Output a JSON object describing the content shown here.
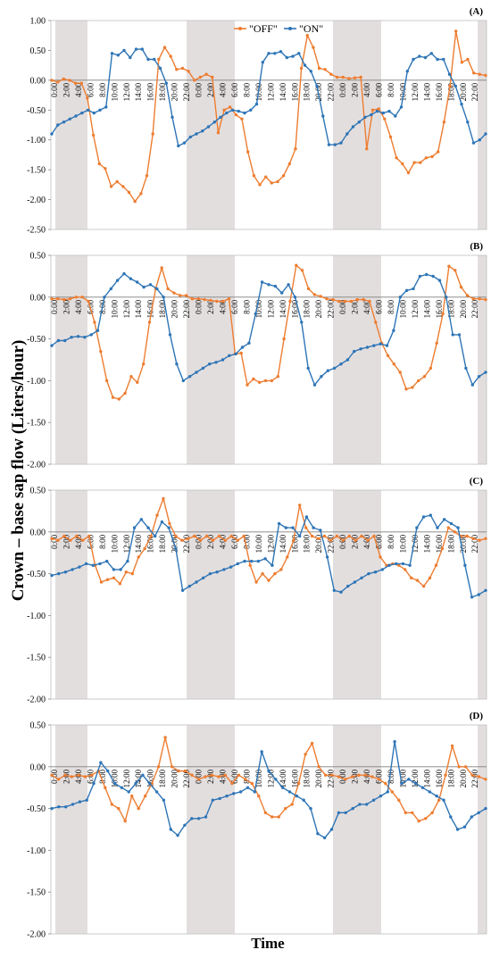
{
  "figure": {
    "ylabel": "Crown – base sap flow (Liters/hour)",
    "xlabel": "Time"
  },
  "legend": [
    {
      "name": "\"OFF\"",
      "color": "#ED7D31"
    },
    {
      "name": "\"ON\"",
      "color": "#2E75B6"
    }
  ],
  "colors": {
    "off": "#ED7D31",
    "on": "#2E75B6",
    "night_band": "#E3DEDE"
  },
  "chart_data": [
    {
      "type": "line",
      "panel_label": "(A)",
      "ylim": [
        -2.5,
        1.0
      ],
      "yticks": [
        "1.00",
        "0.50",
        "0.00",
        "-0.50",
        "-1.00",
        "-1.50",
        "-2.00",
        "-2.50"
      ],
      "ytick_values": [
        1.0,
        0.5,
        0.0,
        -0.5,
        -1.0,
        -1.5,
        -2.0,
        -2.5
      ],
      "x_tick_labels": [
        "0:00",
        "2:00",
        "4:00",
        "6:00",
        "8:00",
        "10:00",
        "12:00",
        "14:00",
        "16:00",
        "18:00",
        "20:00",
        "22:00",
        "0:00",
        "2:00",
        "4:00",
        "6:00",
        "8:00",
        "10:00",
        "12:00",
        "14:00",
        "16:00",
        "18:00",
        "20:00",
        "22:00",
        "0:00",
        "2:00",
        "4:00",
        "6:00",
        "8:00",
        "10:00",
        "12:00",
        "14:00",
        "16:00",
        "18:00",
        "20:00",
        "22:00"
      ],
      "legend_position": "top",
      "series": [
        {
          "name": "\"OFF\"",
          "values": [
            0.0,
            -0.03,
            0.02,
            0.0,
            -0.05,
            -0.05,
            -0.3,
            -0.92,
            -1.4,
            -1.48,
            -1.78,
            -1.7,
            -1.78,
            -1.88,
            -2.03,
            -1.9,
            -1.6,
            -0.9,
            0.35,
            0.55,
            0.4,
            0.18,
            0.2,
            0.15,
            0.0,
            0.05,
            0.1,
            0.05,
            -0.88,
            -0.5,
            -0.45,
            -0.58,
            -0.65,
            -1.2,
            -1.6,
            -1.75,
            -1.62,
            -1.72,
            -1.7,
            -1.6,
            -1.4,
            -1.15,
            0.2,
            0.75,
            0.55,
            0.2,
            0.18,
            0.1,
            0.05,
            0.05,
            0.03,
            0.04,
            0.05,
            -1.15,
            -0.5,
            -0.48,
            -0.65,
            -0.95,
            -1.3,
            -1.4,
            -1.55,
            -1.38,
            -1.38,
            -1.3,
            -1.28,
            -1.2,
            -0.7,
            -0.1,
            0.82,
            0.3,
            0.35,
            0.12,
            0.1,
            0.08
          ]
        },
        {
          "name": "\"ON\"",
          "values": [
            -0.9,
            -0.75,
            -0.7,
            -0.65,
            -0.6,
            -0.55,
            -0.5,
            -0.55,
            -0.5,
            -0.45,
            0.45,
            0.42,
            0.5,
            0.38,
            0.52,
            0.52,
            0.35,
            0.35,
            0.2,
            -0.05,
            -0.62,
            -1.1,
            -1.05,
            -0.95,
            -0.9,
            -0.85,
            -0.78,
            -0.7,
            -0.62,
            -0.55,
            -0.5,
            -0.52,
            -0.55,
            -0.5,
            -0.4,
            0.3,
            0.45,
            0.45,
            0.48,
            0.38,
            0.4,
            0.45,
            0.25,
            0.15,
            -0.1,
            -0.6,
            -1.08,
            -1.08,
            -1.05,
            -0.9,
            -0.78,
            -0.7,
            -0.62,
            -0.58,
            -0.52,
            -0.55,
            -0.52,
            -0.6,
            -0.45,
            0.15,
            0.35,
            0.4,
            0.38,
            0.45,
            0.35,
            0.35,
            0.1,
            -0.1,
            -0.4,
            -0.7,
            -1.05,
            -1.0,
            -0.9
          ]
        }
      ]
    },
    {
      "type": "line",
      "panel_label": "(B)",
      "ylim": [
        -2.0,
        0.5
      ],
      "yticks": [
        "0.50",
        "0.00",
        "-0.50",
        "-1.00",
        "-1.50",
        "-2.00"
      ],
      "ytick_values": [
        0.5,
        0.0,
        -0.5,
        -1.0,
        -1.5,
        -2.0
      ],
      "x_tick_labels": [
        "0:00",
        "2:00",
        "4:00",
        "6:00",
        "8:00",
        "10:00",
        "12:00",
        "14:00",
        "16:00",
        "18:00",
        "20:00",
        "22:00",
        "0:00",
        "2:00",
        "4:00",
        "6:00",
        "8:00",
        "10:00",
        "12:00",
        "14:00",
        "16:00",
        "18:00",
        "20:00",
        "22:00",
        "0:00",
        "2:00",
        "4:00",
        "6:00",
        "8:00",
        "10:00",
        "12:00",
        "14:00",
        "16:00",
        "18:00",
        "20:00",
        "22:00"
      ],
      "series": [
        {
          "name": "\"OFF\"",
          "values": [
            -0.02,
            -0.02,
            -0.03,
            -0.02,
            0.0,
            0.0,
            -0.05,
            -0.3,
            -0.65,
            -1.0,
            -1.2,
            -1.22,
            -1.15,
            -0.95,
            -1.02,
            -0.8,
            -0.3,
            0.1,
            0.35,
            0.1,
            0.05,
            0.02,
            0.02,
            -0.02,
            -0.02,
            -0.03,
            -0.04,
            -0.05,
            -0.05,
            -0.02,
            -0.68,
            -0.67,
            -1.05,
            -0.98,
            -1.02,
            -1.0,
            -1.0,
            -0.95,
            -0.5,
            -0.05,
            0.38,
            0.32,
            0.1,
            0.03,
            0.01,
            -0.02,
            -0.03,
            -0.05,
            -0.05,
            -0.05,
            -0.03,
            -0.03,
            -0.05,
            -0.3,
            -0.55,
            -0.7,
            -0.8,
            -0.9,
            -1.1,
            -1.08,
            -1.0,
            -0.95,
            -0.85,
            -0.55,
            -0.2,
            0.37,
            0.32,
            0.12,
            0.02,
            -0.02,
            -0.02,
            -0.03
          ]
        },
        {
          "name": "\"ON\"",
          "values": [
            -0.58,
            -0.52,
            -0.52,
            -0.48,
            -0.47,
            -0.48,
            -0.45,
            -0.4,
            0.0,
            0.1,
            0.2,
            0.28,
            0.22,
            0.18,
            0.12,
            0.15,
            0.1,
            0.0,
            -0.45,
            -0.8,
            -1.0,
            -0.95,
            -0.9,
            -0.85,
            -0.8,
            -0.78,
            -0.75,
            -0.7,
            -0.68,
            -0.6,
            -0.55,
            -0.2,
            0.18,
            0.15,
            0.13,
            0.05,
            0.15,
            0.0,
            -0.3,
            -0.85,
            -1.05,
            -0.95,
            -0.88,
            -0.85,
            -0.8,
            -0.75,
            -0.65,
            -0.62,
            -0.6,
            -0.58,
            -0.56,
            -0.58,
            -0.4,
            0.0,
            0.08,
            0.1,
            0.25,
            0.27,
            0.25,
            0.2,
            0.0,
            -0.45,
            -0.45,
            -0.85,
            -1.05,
            -0.95,
            -0.9
          ]
        }
      ]
    },
    {
      "type": "line",
      "panel_label": "(C)",
      "ylim": [
        -2.0,
        0.5
      ],
      "yticks": [
        "0.50",
        "0.00",
        "-0.50",
        "-1.00",
        "-1.50",
        "-2.00"
      ],
      "ytick_values": [
        0.5,
        0.0,
        -0.5,
        -1.0,
        -1.5,
        -2.0
      ],
      "x_tick_labels": [
        "0:00",
        "2:00",
        "4:00",
        "6:00",
        "8:00",
        "10:00",
        "12:00",
        "14:00",
        "16:00",
        "18:00",
        "20:00",
        "22:00",
        "0:00",
        "2:00",
        "4:00",
        "6:00",
        "8:00",
        "10:00",
        "12:00",
        "14:00",
        "16:00",
        "18:00",
        "20:00",
        "22:00",
        "0:00",
        "2:00",
        "4:00",
        "6:00",
        "8:00",
        "10:00",
        "12:00",
        "14:00",
        "16:00",
        "18:00",
        "20:00",
        "22:00"
      ],
      "series": [
        {
          "name": "\"OFF\"",
          "values": [
            -0.08,
            -0.1,
            -0.05,
            -0.1,
            -0.05,
            -0.1,
            -0.05,
            -0.4,
            -0.6,
            -0.57,
            -0.55,
            -0.62,
            -0.48,
            -0.5,
            -0.3,
            -0.2,
            -0.05,
            0.2,
            0.4,
            0.1,
            -0.05,
            -0.1,
            -0.08,
            -0.05,
            -0.1,
            -0.05,
            -0.1,
            -0.05,
            -0.1,
            -0.05,
            -0.1,
            -0.05,
            -0.4,
            -0.6,
            -0.5,
            -0.58,
            -0.5,
            -0.45,
            -0.3,
            -0.1,
            0.32,
            0.05,
            -0.05,
            -0.08,
            -0.05,
            -0.1,
            -0.05,
            -0.1,
            -0.05,
            -0.1,
            -0.05,
            -0.1,
            -0.05,
            -0.3,
            -0.4,
            -0.38,
            -0.4,
            -0.45,
            -0.55,
            -0.58,
            -0.65,
            -0.55,
            -0.4,
            -0.2,
            0.05,
            0.0,
            -0.05,
            -0.05,
            -0.08,
            -0.1,
            -0.08
          ]
        },
        {
          "name": "\"ON\"",
          "values": [
            -0.52,
            -0.5,
            -0.48,
            -0.45,
            -0.42,
            -0.38,
            -0.4,
            -0.38,
            -0.35,
            -0.45,
            -0.45,
            -0.35,
            0.05,
            0.15,
            0.05,
            -0.05,
            0.12,
            0.05,
            -0.2,
            -0.7,
            -0.65,
            -0.6,
            -0.55,
            -0.5,
            -0.48,
            -0.45,
            -0.42,
            -0.38,
            -0.35,
            -0.35,
            -0.35,
            -0.32,
            -0.4,
            0.1,
            0.05,
            0.05,
            -0.05,
            0.18,
            0.05,
            0.02,
            -0.3,
            -0.7,
            -0.72,
            -0.65,
            -0.6,
            -0.55,
            -0.5,
            -0.48,
            -0.45,
            -0.4,
            -0.38,
            -0.38,
            -0.4,
            0.05,
            0.18,
            0.2,
            0.05,
            0.15,
            0.1,
            0.05,
            -0.4,
            -0.78,
            -0.75,
            -0.7
          ]
        }
      ]
    },
    {
      "type": "line",
      "panel_label": "(D)",
      "ylim": [
        -2.0,
        0.5
      ],
      "yticks": [
        "0.50",
        "0.00",
        "-0.50",
        "-1.00",
        "-1.50",
        "-2.00"
      ],
      "ytick_values": [
        0.5,
        0.0,
        -0.5,
        -1.0,
        -1.5,
        -2.0
      ],
      "x_tick_labels": [
        "0:00",
        "2:00",
        "4:00",
        "6:00",
        "8:00",
        "10:00",
        "12:00",
        "14:00",
        "16:00",
        "18:00",
        "20:00",
        "22:00",
        "0:00",
        "2:00",
        "4:00",
        "6:00",
        "8:00",
        "10:00",
        "12:00",
        "14:00",
        "16:00",
        "18:00",
        "20:00",
        "22:00",
        "0:00",
        "2:00",
        "4:00",
        "6:00",
        "8:00",
        "10:00",
        "12:00",
        "14:00",
        "16:00",
        "18:00",
        "20:00",
        "22:00"
      ],
      "series": [
        {
          "name": "\"OFF\"",
          "values": [
            -0.1,
            -0.15,
            -0.1,
            -0.12,
            -0.1,
            -0.12,
            -0.1,
            -0.05,
            -0.25,
            -0.45,
            -0.5,
            -0.65,
            -0.35,
            -0.5,
            -0.35,
            -0.2,
            0.0,
            0.35,
            0.0,
            -0.05,
            -0.05,
            -0.1,
            -0.15,
            -0.12,
            -0.1,
            -0.12,
            -0.1,
            -0.2,
            -0.1,
            -0.15,
            -0.2,
            -0.35,
            -0.55,
            -0.6,
            -0.6,
            -0.5,
            -0.45,
            -0.2,
            0.15,
            0.28,
            0.0,
            -0.1,
            -0.1,
            -0.12,
            -0.15,
            -0.12,
            -0.1,
            -0.1,
            -0.12,
            -0.15,
            -0.2,
            -0.3,
            -0.4,
            -0.55,
            -0.55,
            -0.65,
            -0.62,
            -0.55,
            -0.4,
            -0.1,
            0.25,
            0.0,
            0.0,
            -0.1,
            -0.12,
            -0.15
          ]
        },
        {
          "name": "\"ON\"",
          "values": [
            -0.5,
            -0.48,
            -0.48,
            -0.45,
            -0.42,
            -0.4,
            -0.2,
            0.05,
            -0.05,
            -0.2,
            -0.25,
            -0.3,
            -0.2,
            -0.1,
            -0.2,
            -0.3,
            -0.4,
            -0.75,
            -0.82,
            -0.7,
            -0.62,
            -0.62,
            -0.6,
            -0.4,
            -0.38,
            -0.35,
            -0.32,
            -0.3,
            -0.25,
            -0.3,
            0.18,
            -0.05,
            -0.15,
            -0.25,
            -0.3,
            -0.35,
            -0.4,
            -0.5,
            -0.8,
            -0.85,
            -0.75,
            -0.55,
            -0.55,
            -0.5,
            -0.45,
            -0.45,
            -0.4,
            -0.35,
            -0.3,
            0.3,
            -0.2,
            -0.15,
            -0.2,
            -0.25,
            -0.3,
            -0.35,
            -0.4,
            -0.6,
            -0.75,
            -0.72,
            -0.6,
            -0.55,
            -0.5
          ]
        }
      ]
    }
  ]
}
